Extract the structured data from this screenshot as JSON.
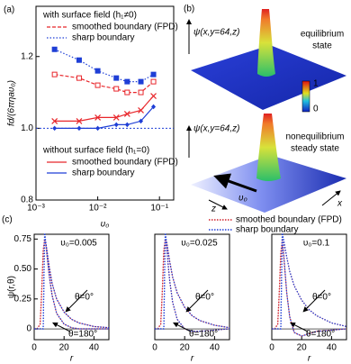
{
  "chart_data": [
    {
      "type": "line",
      "panel_label": "(a)",
      "xscale": "log",
      "xlim": [
        0.001,
        0.17
      ],
      "ylim": [
        0.8,
        1.34
      ],
      "xticks": [
        {
          "value": 0.001,
          "label": "10⁻³"
        },
        {
          "value": 0.01,
          "label": "10⁻²"
        },
        {
          "value": 0.1,
          "label": "10⁻¹"
        }
      ],
      "yticks": [
        0.8,
        {
          "value": 1,
          "label": "1.0"
        },
        1.2
      ],
      "xlabel": "υ₀",
      "ylabel": "fd/(6πηaυ₀)",
      "hline": 1,
      "legend_titles": [
        "with surface field (h₁≠0)",
        "without surface field (h₁=0)"
      ],
      "x": [
        0.002,
        0.005,
        0.01,
        0.02,
        0.03,
        0.05,
        0.08
      ],
      "series": [
        {
          "name": "smoothed boundary (FPD)",
          "color": "#e8262b",
          "dash": "4,2",
          "marker": "square-open",
          "values": [
            1.15,
            1.14,
            1.12,
            1.11,
            1.1,
            1.1,
            1.13
          ]
        },
        {
          "name": "sharp boundary",
          "color": "#1f3fd6",
          "dash": "1.5,2",
          "marker": "square",
          "values": [
            1.22,
            1.19,
            1.16,
            1.14,
            1.13,
            1.13,
            1.15
          ]
        },
        {
          "name": "smoothed boundary (FPD)",
          "color": "#e8262b",
          "dash": "none",
          "marker": "cross",
          "values": [
            1.02,
            1.02,
            1.03,
            1.03,
            1.04,
            1.05,
            1.09
          ]
        },
        {
          "name": "sharp boundary",
          "color": "#1f3fd6",
          "dash": "none",
          "marker": "diamond",
          "values": [
            1.0,
            1.0,
            1.0,
            1.01,
            1.01,
            1.02,
            1.06
          ]
        }
      ]
    },
    {
      "type": "line",
      "panel_label": "(c)",
      "title": "υ₀=0.005",
      "xlim": [
        0,
        50
      ],
      "ylim": [
        -0.09,
        0.79
      ],
      "xticks": [
        0,
        20,
        40
      ],
      "yticks": [
        0,
        0.25,
        {
          "value": 0.5,
          "label": "0.50"
        },
        0.75
      ],
      "xlabel": "r",
      "ylabel": "ψ(r,θ)",
      "annotations": [
        "θ=0°",
        "θ=180°"
      ],
      "x": [
        0,
        2,
        4,
        5,
        6,
        7,
        8,
        10,
        12,
        15,
        20,
        25,
        30,
        40,
        50
      ],
      "series": [
        {
          "name": "smoothed boundary (FPD)",
          "color": "#d0202a",
          "dash": "1.5,1.5",
          "values": [
            0,
            0,
            0.04,
            0.3,
            0.65,
            0.75,
            0.7,
            0.52,
            0.38,
            0.25,
            0.14,
            0.08,
            0.05,
            0.02,
            0.01
          ]
        },
        {
          "color": "#d0202a",
          "dash": "1.5,1.5",
          "values": [
            0,
            0,
            0.04,
            0.3,
            0.65,
            0.75,
            0.68,
            0.45,
            0.28,
            0.13,
            0.04,
            0.01,
            0,
            0,
            0
          ]
        },
        {
          "name": "sharp boundary",
          "color": "#1f3fd6",
          "dash": "1.5,1.5",
          "values": [
            0,
            0,
            0,
            0,
            0,
            0.8,
            0.7,
            0.52,
            0.38,
            0.25,
            0.14,
            0.08,
            0.05,
            0.02,
            0.01
          ]
        },
        {
          "color": "#1f3fd6",
          "dash": "1.5,1.5",
          "values": [
            0,
            0,
            0,
            0,
            0,
            0.8,
            0.68,
            0.45,
            0.28,
            0.13,
            0.04,
            0.01,
            0,
            0,
            0
          ]
        }
      ]
    },
    {
      "type": "line",
      "title": "υ₀=0.025",
      "xlim": [
        0,
        50
      ],
      "ylim": [
        -0.09,
        0.79
      ],
      "xticks": [
        0,
        20,
        40
      ],
      "xlabel": "r",
      "annotations": [
        "θ=0°",
        "θ=180°"
      ],
      "x": [
        0,
        2,
        4,
        5,
        6,
        7,
        8,
        10,
        12,
        15,
        20,
        25,
        30,
        40,
        50
      ],
      "series": [
        {
          "color": "#d0202a",
          "dash": "1.5,1.5",
          "values": [
            0,
            0,
            0.04,
            0.3,
            0.65,
            0.75,
            0.72,
            0.56,
            0.43,
            0.3,
            0.18,
            0.11,
            0.07,
            0.03,
            0.01
          ]
        },
        {
          "color": "#d0202a",
          "dash": "1.5,1.5",
          "values": [
            0,
            0,
            0.04,
            0.3,
            0.65,
            0.74,
            0.66,
            0.4,
            0.22,
            0.08,
            0,
            -0.02,
            -0.02,
            -0.01,
            0
          ]
        },
        {
          "color": "#1f3fd6",
          "dash": "1.5,1.5",
          "values": [
            0,
            0,
            0,
            0,
            0,
            0.8,
            0.72,
            0.56,
            0.43,
            0.3,
            0.18,
            0.11,
            0.07,
            0.03,
            0.01
          ]
        },
        {
          "color": "#1f3fd6",
          "dash": "1.5,1.5",
          "values": [
            0,
            0,
            0,
            0,
            0,
            0.8,
            0.66,
            0.4,
            0.22,
            0.08,
            0,
            -0.02,
            -0.02,
            -0.01,
            0
          ]
        }
      ]
    },
    {
      "type": "line",
      "title": "υ₀=0.1",
      "xlim": [
        0,
        50
      ],
      "ylim": [
        -0.09,
        0.79
      ],
      "xticks": [
        0,
        20,
        40
      ],
      "xlabel": "r",
      "annotations": [
        "θ=0°",
        "θ=180°"
      ],
      "x": [
        0,
        2,
        4,
        5,
        6,
        7,
        8,
        10,
        12,
        15,
        20,
        25,
        30,
        40,
        50
      ],
      "series": [
        {
          "color": "#d0202a",
          "dash": "1.5,1.5",
          "values": [
            0,
            0,
            0.04,
            0.3,
            0.64,
            0.74,
            0.72,
            0.6,
            0.48,
            0.36,
            0.24,
            0.16,
            0.11,
            0.05,
            0.02
          ]
        },
        {
          "color": "#d0202a",
          "dash": "1.5,1.5",
          "values": [
            0,
            0,
            0.04,
            0.3,
            0.62,
            0.7,
            0.6,
            0.3,
            0.1,
            -0.03,
            -0.06,
            -0.04,
            -0.02,
            -0.01,
            0
          ]
        },
        {
          "color": "#1f3fd6",
          "dash": "1.5,1.5",
          "values": [
            0,
            0,
            0,
            0,
            0,
            0.8,
            0.74,
            0.6,
            0.48,
            0.36,
            0.24,
            0.16,
            0.11,
            0.05,
            0.02
          ]
        },
        {
          "color": "#1f3fd6",
          "dash": "1.5,1.5",
          "values": [
            0,
            0,
            0,
            0,
            0,
            0.8,
            0.62,
            0.3,
            0.1,
            -0.03,
            -0.06,
            -0.04,
            -0.02,
            -0.01,
            0
          ]
        }
      ]
    }
  ],
  "illustration": {
    "panel_label": "(b)",
    "axis_label_top": "ψ(x,y=64,z)",
    "state_top": [
      "equilibrium",
      "state"
    ],
    "colorbar_labels": [
      "1",
      "0"
    ],
    "axis_label_bottom": "ψ(x,y=64,z)",
    "state_bottom": [
      "nonequilibrium",
      "steady state"
    ],
    "velocity": "υ₀",
    "z_label": "z",
    "x_label": "x"
  }
}
